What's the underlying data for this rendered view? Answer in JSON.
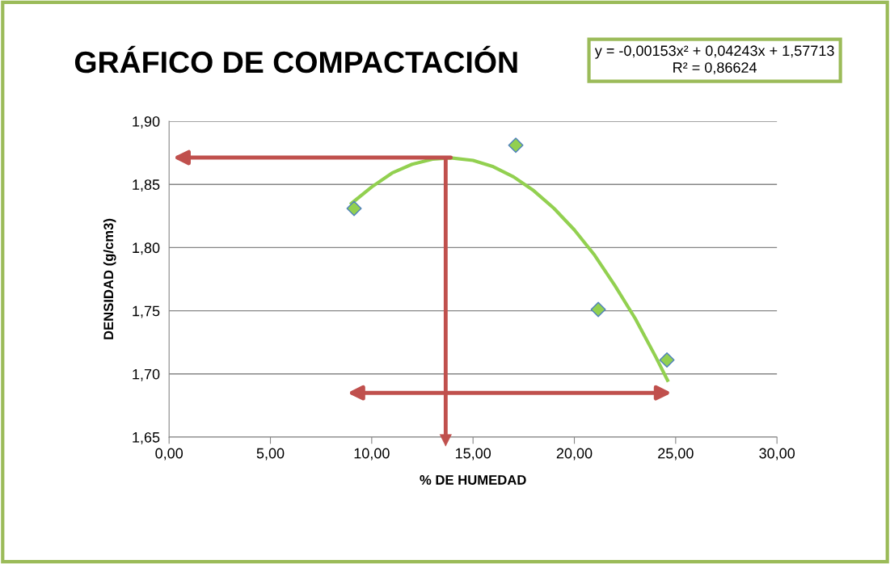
{
  "chart_data": {
    "type": "scatter",
    "title": "GRÁFICO DE COMPACTACIÓN",
    "xlabel": "% DE HUMEDAD",
    "ylabel": "DENSIDAD (g/cm3)",
    "annotations": [
      "y = -0,00153x² + 0,04243x + 1,57713\nR² = 0,86624"
    ],
    "series": [
      {
        "color": "#92d050",
        "x": [
          9.13,
          17.11,
          21.18,
          24.57
        ],
        "values": [
          1.831,
          1.881,
          1.751,
          1.711
        ],
        "marker": "diamond"
      },
      {
        "type": "line",
        "color": "#92d050",
        "x": [
          9.0,
          10.0,
          11.0,
          12.0,
          13.0,
          13.9,
          15.0,
          16.0,
          17.0,
          18.0,
          19.0,
          20.0,
          21.0,
          22.0,
          23.0,
          24.0,
          24.6
        ],
        "values": [
          1.835,
          1.848,
          1.859,
          1.866,
          1.87,
          1.871,
          1.869,
          1.864,
          1.856,
          1.845,
          1.831,
          1.814,
          1.794,
          1.77,
          1.744,
          1.714,
          1.695
        ],
        "marker": "none"
      }
    ],
    "xlim": [
      0,
      30
    ],
    "ylim": [
      1.65,
      1.9
    ],
    "xticks": [
      {
        "value": 0,
        "label": "0,00"
      },
      {
        "value": 5,
        "label": "5,00"
      },
      {
        "value": 10,
        "label": "10,00"
      },
      {
        "value": 15,
        "label": "15,00"
      },
      {
        "value": 20,
        "label": "20,00"
      },
      {
        "value": 25,
        "label": "25,00"
      },
      {
        "value": 30,
        "label": "30,00"
      }
    ],
    "yticks": [
      {
        "value": 1.65,
        "label": "1,65"
      },
      {
        "value": 1.7,
        "label": "1,70"
      },
      {
        "value": 1.75,
        "label": "1,75"
      },
      {
        "value": 1.8,
        "label": "1,80"
      },
      {
        "value": 1.85,
        "label": "1,85"
      },
      {
        "value": 1.9,
        "label": "1,90"
      }
    ],
    "ref_lines": [
      {
        "axis": "x",
        "value": 13.65,
        "color": "#c0504d"
      }
    ],
    "grid": "y"
  }
}
